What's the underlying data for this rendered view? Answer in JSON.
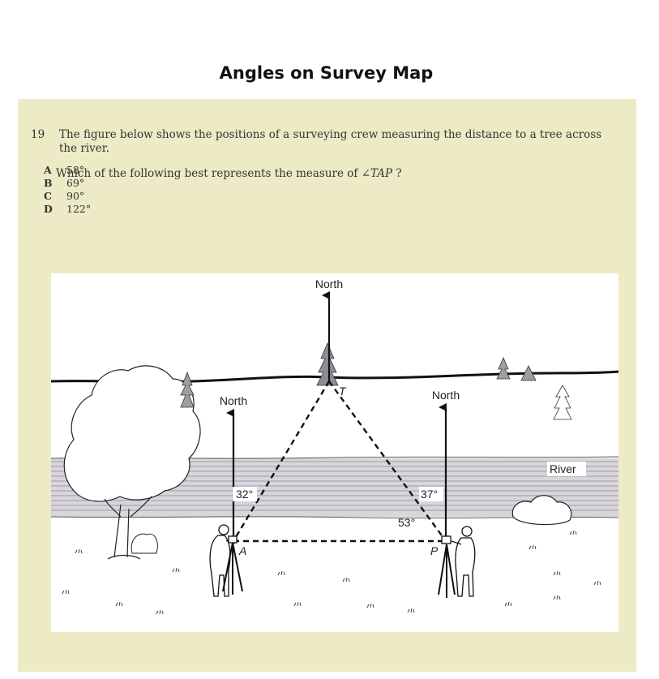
{
  "heading": "Angles on Survey Map",
  "question": {
    "number": "19",
    "text": "The figure below shows the positions of a surveying crew measuring the distance to a tree across the river.",
    "ask_prefix": "Which of the following best represents the measure of ",
    "ask_angle": "∠TAP",
    "ask_suffix": " ?",
    "choices": [
      {
        "letter": "A",
        "value": "58°"
      },
      {
        "letter": "B",
        "value": "69°"
      },
      {
        "letter": "C",
        "value": "90°"
      },
      {
        "letter": "D",
        "value": "122°"
      }
    ]
  },
  "figure": {
    "north_top": "North",
    "north_left": "North",
    "north_right": "North",
    "point_t": "T",
    "point_a": "A",
    "point_p": "P",
    "angle_a": "32°",
    "angle_p_north": "37°",
    "angle_p_base": "53°",
    "river_label": "River"
  }
}
